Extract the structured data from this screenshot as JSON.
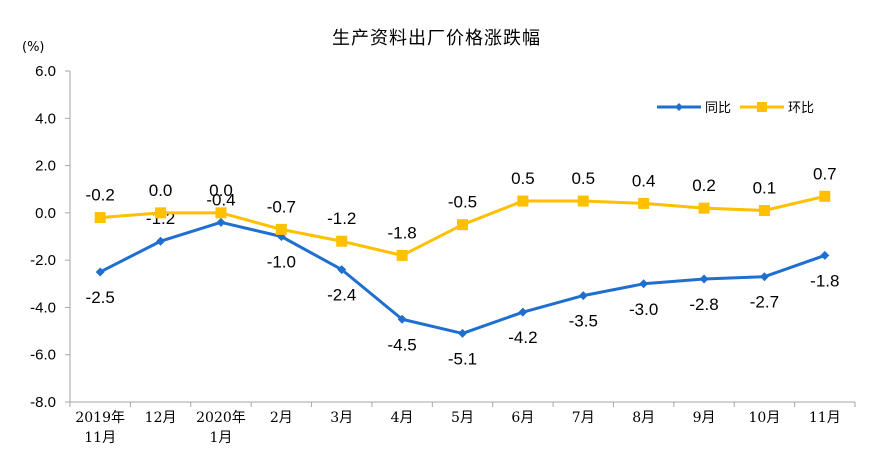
{
  "chart_data": {
    "type": "line",
    "title": "生产资料出厂价格涨跌幅",
    "unit": "(%)",
    "categories": [
      [
        "2019年",
        "11月"
      ],
      [
        "12月"
      ],
      [
        "2020年",
        "1月"
      ],
      [
        "2月"
      ],
      [
        "3月"
      ],
      [
        "4月"
      ],
      [
        "5月"
      ],
      [
        "6月"
      ],
      [
        "7月"
      ],
      [
        "8月"
      ],
      [
        "9月"
      ],
      [
        "10月"
      ],
      [
        "11月"
      ]
    ],
    "ylim": [
      -8.0,
      6.0
    ],
    "yticks": [
      "6.0",
      "4.0",
      "2.0",
      "0.0",
      "-2.0",
      "-4.0",
      "-6.0",
      "-8.0"
    ],
    "grid": false,
    "legend_position": "top-right",
    "series": [
      {
        "name": "同比",
        "color": "#1F6FD0",
        "marker": "diamond",
        "values": [
          -2.5,
          -1.2,
          -0.4,
          -1.0,
          -2.4,
          -4.5,
          -5.1,
          -4.2,
          -3.5,
          -3.0,
          -2.8,
          -2.7,
          -1.8
        ],
        "labels": [
          "-2.5",
          "-1.2",
          "-0.4",
          "-1.0",
          "-2.4",
          "-4.5",
          "-5.1",
          "-4.2",
          "-3.5",
          "-3.0",
          "-2.8",
          "-2.7",
          "-1.8"
        ]
      },
      {
        "name": "环比",
        "color": "#FFC000",
        "marker": "square",
        "values": [
          -0.2,
          0.0,
          0.0,
          -0.7,
          -1.2,
          -1.8,
          -0.5,
          0.5,
          0.5,
          0.4,
          0.2,
          0.1,
          0.7
        ],
        "labels": [
          "-0.2",
          "0.0",
          "0.0",
          "-0.7",
          "-1.2",
          "-1.8",
          "-0.5",
          "0.5",
          "0.5",
          "0.4",
          "0.2",
          "0.1",
          "0.7"
        ]
      }
    ]
  }
}
